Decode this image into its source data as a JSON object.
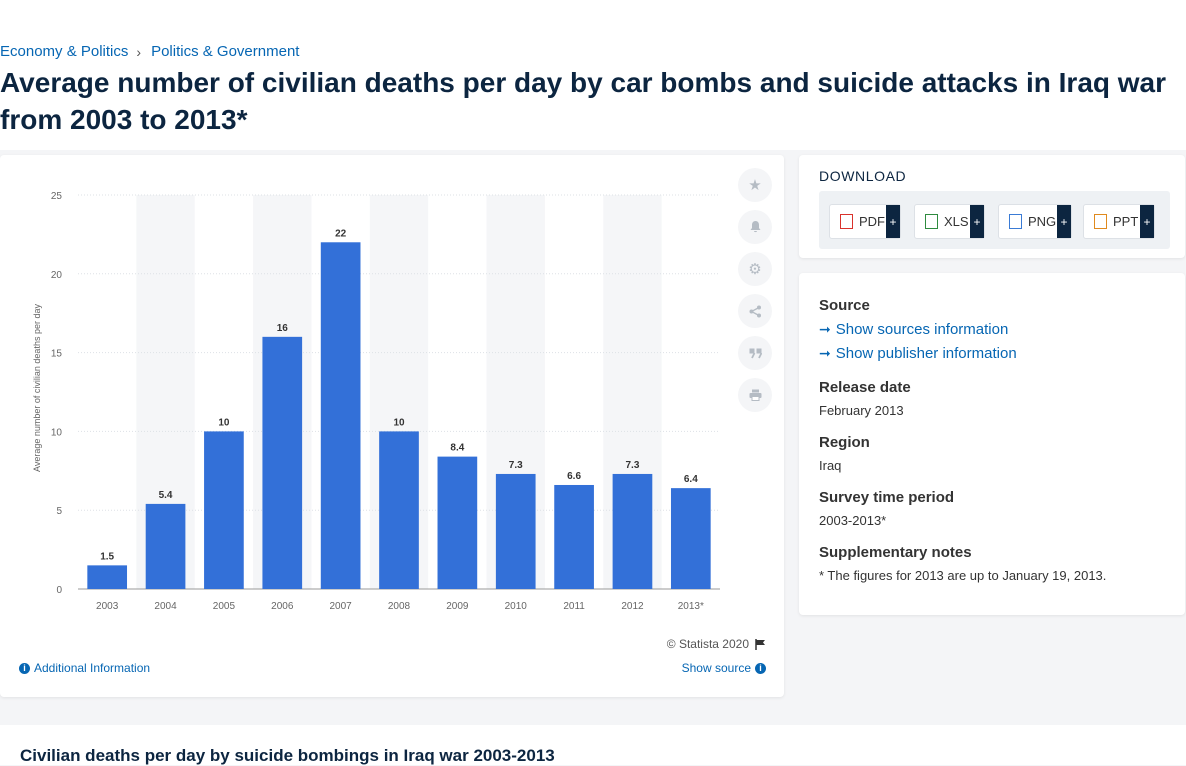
{
  "breadcrumb": [
    {
      "label": "Economy & Politics"
    },
    {
      "label": "Politics & Government"
    }
  ],
  "breadcrumb_separator": "›",
  "page_title": "Average number of civilian deaths per day by car bombs and suicide attacks in Iraq war from 2003 to 2013*",
  "chart_data": {
    "type": "bar",
    "categories": [
      "2003",
      "2004",
      "2005",
      "2006",
      "2007",
      "2008",
      "2009",
      "2010",
      "2011",
      "2012",
      "2013*"
    ],
    "values": [
      1.5,
      5.4,
      10,
      16,
      22,
      10,
      8.4,
      7.3,
      6.6,
      7.3,
      6.4
    ],
    "value_labels": [
      "1.5",
      "5.4",
      "10",
      "16",
      "22",
      "10",
      "8.4",
      "7.3",
      "6.6",
      "7.3",
      "6.4"
    ],
    "ylabel": "Average number of civilian deaths per day",
    "ylim": [
      0,
      25
    ],
    "yticks": [
      "0",
      "5",
      "10",
      "15",
      "20",
      "25"
    ],
    "bar_color": "#3370d8",
    "grid": true
  },
  "chart_footer": {
    "copyright": "© Statista 2020",
    "additional_info": "Additional Information",
    "show_source": "Show source"
  },
  "tools": [
    "star-icon",
    "bell-icon",
    "gear-icon",
    "share-icon",
    "quote-icon",
    "print-icon"
  ],
  "download": {
    "title": "DOWNLOAD",
    "buttons": [
      {
        "label": "PDF",
        "color": "#d9322c"
      },
      {
        "label": "XLS",
        "color": "#2e8b3f"
      },
      {
        "label": "PNG",
        "color": "#3a7bd5"
      },
      {
        "label": "PPT",
        "color": "#e08a1e"
      }
    ],
    "plus": "+"
  },
  "info": {
    "source_heading": "Source",
    "sources_link": "Show sources information",
    "publisher_link": "Show publisher information",
    "release_heading": "Release date",
    "release_value": "February 2013",
    "region_heading": "Region",
    "region_value": "Iraq",
    "survey_heading": "Survey time period",
    "survey_value": "2003-2013*",
    "notes_heading": "Supplementary notes",
    "notes_value": "* The figures for 2013 are up to January 19, 2013."
  },
  "related": {
    "title": "Civilian deaths per day by suicide bombings in Iraq war 2003-2013"
  }
}
